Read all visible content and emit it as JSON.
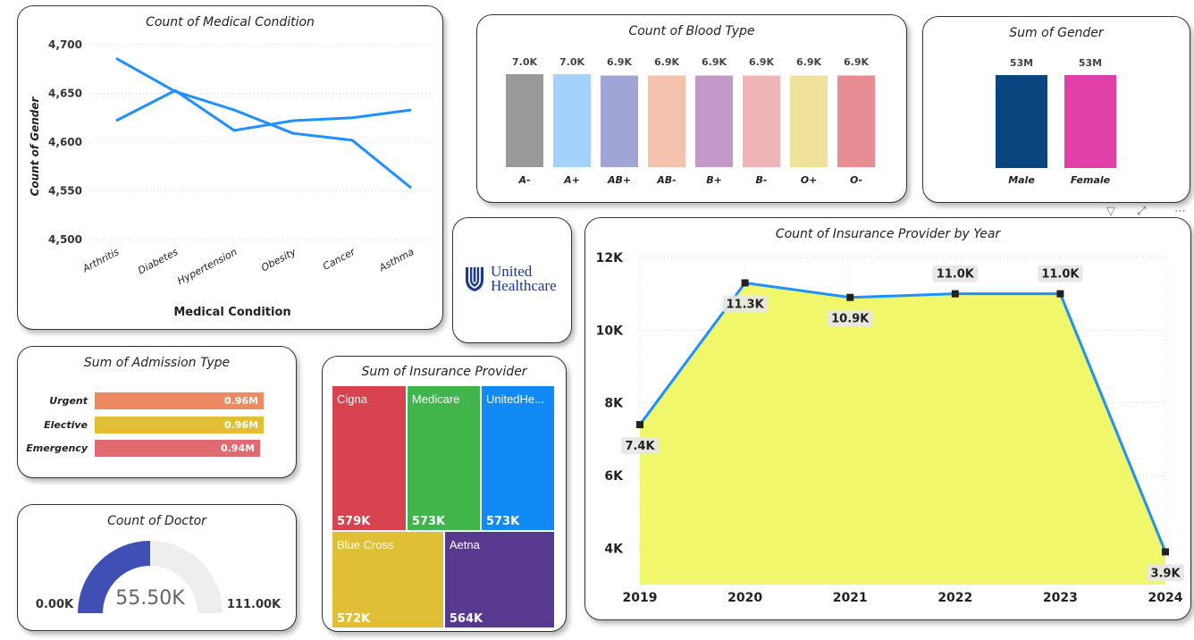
{
  "medical_condition_chart": {
    "title": "Count of Medical Condition",
    "xlabel": "Medical Condition",
    "ylabel": "Count of Gender",
    "chart_data": {
      "type": "line",
      "title": "Count of Medical Condition",
      "xlabel": "Medical Condition",
      "ylabel": "Count of Gender",
      "categories": [
        "Arthritis",
        "Diabetes",
        "Hypertension",
        "Obesity",
        "Cancer",
        "Asthma"
      ],
      "series": [
        {
          "values": [
            4686,
            4652,
            4633,
            4609,
            4602,
            4553
          ]
        },
        {
          "values": [
            4622,
            4653,
            4612,
            4622,
            4625,
            4633
          ]
        }
      ],
      "yticks": [
        "4,500",
        "4,550",
        "4,600",
        "4,650",
        "4,700"
      ],
      "ylim": [
        4500,
        4700
      ],
      "grid": true,
      "color": "#1e90ff"
    }
  },
  "blood_type_chart": {
    "title": "Count of Blood Type",
    "chart_data": {
      "type": "bar",
      "title": "Count of Blood Type",
      "categories": [
        "A-",
        "A+",
        "AB+",
        "AB-",
        "B+",
        "B-",
        "O+",
        "O-"
      ],
      "values": [
        7.0,
        7.0,
        6.9,
        6.9,
        6.9,
        6.9,
        6.9,
        6.9
      ],
      "value_labels": [
        "7.0K",
        "7.0K",
        "6.9K",
        "6.9K",
        "6.9K",
        "6.9K",
        "6.9K",
        "6.9K"
      ],
      "unit": "K",
      "colors": [
        "#999999",
        "#a3d3fc",
        "#a1a5d6",
        "#f5c2ad",
        "#c39ac7",
        "#efb5b8",
        "#f0e29b",
        "#e68e94"
      ]
    }
  },
  "gender_chart": {
    "title": "Sum of Gender",
    "chart_data": {
      "type": "bar",
      "title": "Sum of Gender",
      "categories": [
        "Male",
        "Female"
      ],
      "values": [
        53,
        53
      ],
      "value_labels": [
        "53M",
        "53M"
      ],
      "unit": "M",
      "colors": [
        "#0b4580",
        "#e040a8"
      ]
    }
  },
  "logo": {
    "line1": "United",
    "line2": "Healthcare"
  },
  "insurance_year_chart": {
    "title": "Count of Insurance Provider by Year",
    "chart_data": {
      "type": "area",
      "title": "Count of Insurance Provider by Year",
      "x": [
        "2019",
        "2020",
        "2021",
        "2022",
        "2023",
        "2024"
      ],
      "values": [
        7.4,
        11.3,
        10.9,
        11.0,
        11.0,
        3.9
      ],
      "value_labels": [
        "7.4K",
        "11.3K",
        "10.9K",
        "11.0K",
        "11.0K",
        "3.9K"
      ],
      "yticks": [
        "4K",
        "6K",
        "8K",
        "10K",
        "12K"
      ],
      "ylim": [
        3,
        12
      ],
      "unit": "K",
      "fill": "#f0f76a",
      "line_color": "#1e90ff",
      "grid": true
    }
  },
  "admission_chart": {
    "title": "Sum of Admission Type",
    "chart_data": {
      "type": "bar",
      "orientation": "horizontal",
      "title": "Sum of Admission Type",
      "categories": [
        "Urgent",
        "Elective",
        "Emergency"
      ],
      "values": [
        0.96,
        0.96,
        0.94
      ],
      "value_labels": [
        "0.96M",
        "0.96M",
        "0.94M"
      ],
      "unit": "M",
      "colors": [
        "#ec8a62",
        "#e3bf35",
        "#e06a70"
      ]
    }
  },
  "insurance_treemap": {
    "title": "Sum of Insurance Provider",
    "chart_data": {
      "type": "treemap",
      "title": "Sum of Insurance Provider",
      "items": [
        {
          "name": "Cigna",
          "value_label": "579K",
          "value": 579,
          "color": "#d9424f"
        },
        {
          "name": "Medicare",
          "value_label": "573K",
          "value": 573,
          "color": "#3fb54b"
        },
        {
          "name": "UnitedHe...",
          "value_label": "573K",
          "value": 573,
          "color": "#128af5"
        },
        {
          "name": "Blue Cross",
          "value_label": "572K",
          "value": 572,
          "color": "#e0be36"
        },
        {
          "name": "Aetna",
          "value_label": "564K",
          "value": 564,
          "color": "#573a90"
        }
      ]
    }
  },
  "doctor_gauge": {
    "title": "Count of Doctor",
    "chart_data": {
      "type": "gauge",
      "title": "Count of Doctor",
      "value": 55.5,
      "min": 0,
      "max": 111.0,
      "value_label": "55.50K",
      "min_label": "0.00K",
      "max_label": "111.00K",
      "fill_color": "#3f4fb3",
      "track_color": "#efeeee"
    }
  }
}
